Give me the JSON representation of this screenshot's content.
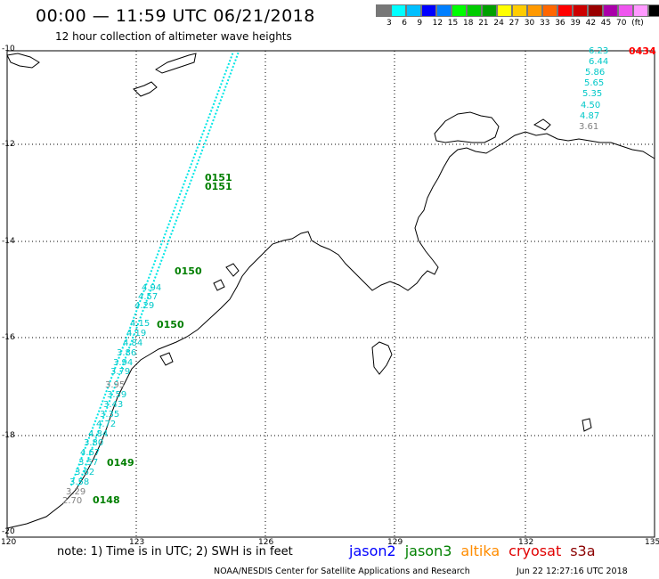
{
  "header": {
    "title": "00:00 — 11:59 UTC 06/21/2018",
    "subtitle": "12 hour collection of altimeter wave heights"
  },
  "scale": {
    "colors": [
      "#777777",
      "#00ffff",
      "#00bfff",
      "#0000ff",
      "#007fff",
      "#00ff00",
      "#00cc00",
      "#00a000",
      "#ffff00",
      "#ffcc00",
      "#ff9900",
      "#ff6600",
      "#ff0000",
      "#cc0000",
      "#990000",
      "#aa00aa",
      "#ee55ee",
      "#ff99ff",
      "#000000"
    ],
    "labels": [
      "3",
      "6",
      "9",
      "12",
      "15",
      "18",
      "21",
      "24",
      "27",
      "30",
      "33",
      "36",
      "39",
      "42",
      "45",
      "70",
      "(ft)"
    ]
  },
  "axes": {
    "lat_labels": [
      "-10",
      "-12",
      "-14",
      "-16",
      "-18",
      "-20"
    ],
    "lon_labels": [
      "120",
      "123",
      "126",
      "129",
      "132",
      "135"
    ]
  },
  "map": {
    "time_labels": [
      "0151",
      "0151",
      "0150",
      "0150",
      "0149",
      "0148"
    ],
    "red_label": "0434",
    "right_values": [
      "6.23",
      "6.44",
      "5.86",
      "5.65",
      "5.35",
      "4.50",
      "4.87",
      "3.61"
    ],
    "left_values": [
      "4.94",
      "4.57",
      "4.29",
      "4.15",
      "4.19",
      "4.84",
      "3.86",
      "3.94",
      "3.79",
      "3.95",
      "3.59",
      "3.43",
      "3.35",
      "4.72",
      "4.84",
      "3.80",
      "4.67",
      "3.57",
      "3.62",
      "3.58",
      "3.29",
      "2.70"
    ],
    "colors": {
      "cyan": "#00e6e6",
      "green": "#007f00",
      "gray": "#808080",
      "red": "#ff0000"
    }
  },
  "footer": {
    "note": "note: 1) Time is in UTC; 2) SWH is in feet",
    "satellites": [
      {
        "name": "jason2",
        "color": "#0000ff"
      },
      {
        "name": "jason3",
        "color": "#008000"
      },
      {
        "name": "altika",
        "color": "#ff8c00"
      },
      {
        "name": "cryosat",
        "color": "#e00000"
      },
      {
        "name": "s3a",
        "color": "#8b0000"
      }
    ],
    "credit": "NOAA/NESDIS Center for Satellite Applications and Research",
    "timestamp": "Jun 22 12:27:16 UTC 2018"
  }
}
